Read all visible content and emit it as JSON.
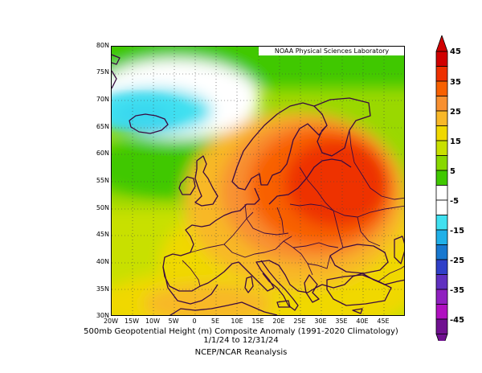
{
  "credit": "NOAA Physical Sciences Laboratory",
  "caption_line1": "500mb Geopotential Height (m) Composite Anomaly (1991-2020 Climatology)",
  "caption_line2": "1/1/24 to 12/31/24",
  "caption_line3": "NCEP/NCAR Reanalysis",
  "lat_labels": [
    "80N",
    "75N",
    "70N",
    "65N",
    "60N",
    "55N",
    "50N",
    "45N",
    "40N",
    "35N",
    "30N"
  ],
  "lon_labels": [
    "20W",
    "15W",
    "10W",
    "5W",
    "0",
    "5E",
    "10E",
    "15E",
    "20E",
    "25E",
    "30E",
    "35E",
    "40E",
    "45E"
  ],
  "colorbar_labels": [
    "45",
    "35",
    "25",
    "15",
    "5",
    "-5",
    "-15",
    "-25",
    "-35",
    "-45"
  ],
  "colorbar_colors": [
    "#d00000",
    "#ee3000",
    "#f86000",
    "#f89030",
    "#f8b828",
    "#f0d800",
    "#c8e000",
    "#88d800",
    "#40c800",
    "#ffffff",
    "#ffffff",
    "#40e0f0",
    "#20b0e8",
    "#1878d0",
    "#3040c8",
    "#6030c0",
    "#9020c0",
    "#b010c0",
    "#701090"
  ]
}
